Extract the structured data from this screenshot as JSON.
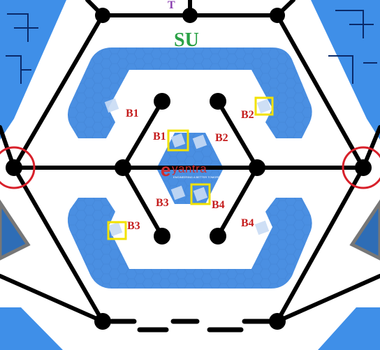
{
  "arena": {
    "zones": {
      "top_small": "T",
      "top_large": "SU"
    },
    "labels": {
      "outer_b1": "B1",
      "outer_b2": "B2",
      "outer_b3": "B3",
      "outer_b4": "B4",
      "inner_b1": "B1",
      "inner_b2": "B2",
      "inner_b3": "B3",
      "inner_b4": "B4"
    },
    "logo": {
      "mark": "e",
      "word": "yantra",
      "tagline": "ENGINEERING A BETTER TOMORROW"
    },
    "colors": {
      "track": "#000000",
      "node": "#000000",
      "zone_fill": "#4a8fe2",
      "zone_dark": "#2a6bc4",
      "label": "#c51d1d",
      "marker_box": "#f2e200",
      "target_ring": "#d8202a",
      "su_text": "#2aa146",
      "t_text": "#8a3fb0"
    }
  }
}
